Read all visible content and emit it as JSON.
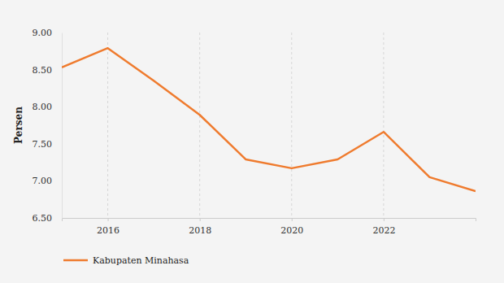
{
  "chart_data": {
    "type": "line",
    "y_label": "Persen",
    "x": [
      2015,
      2016,
      2017,
      2018,
      2019,
      2020,
      2021,
      2022,
      2023,
      2024
    ],
    "series": [
      {
        "name": "Kabupaten Minahasa",
        "color": "#ef7b2e",
        "values": [
          8.53,
          8.79,
          8.35,
          7.89,
          7.29,
          7.17,
          7.29,
          7.66,
          7.05,
          6.86
        ]
      }
    ],
    "xlim": [
      2015,
      2024
    ],
    "xticks": [
      2016,
      2018,
      2020,
      2022
    ],
    "ylim": [
      6.5,
      9.0
    ],
    "yticks": [
      {
        "value": 6.5,
        "label": "6.50"
      },
      {
        "value": 7.0,
        "label": "7.00"
      },
      {
        "value": 7.5,
        "label": "7.50"
      },
      {
        "value": 8.0,
        "label": "8.00"
      },
      {
        "value": 8.5,
        "label": "8.50"
      },
      {
        "value": 9.0,
        "label": "9.00"
      }
    ],
    "grid": true,
    "legend": "bottom-left"
  }
}
